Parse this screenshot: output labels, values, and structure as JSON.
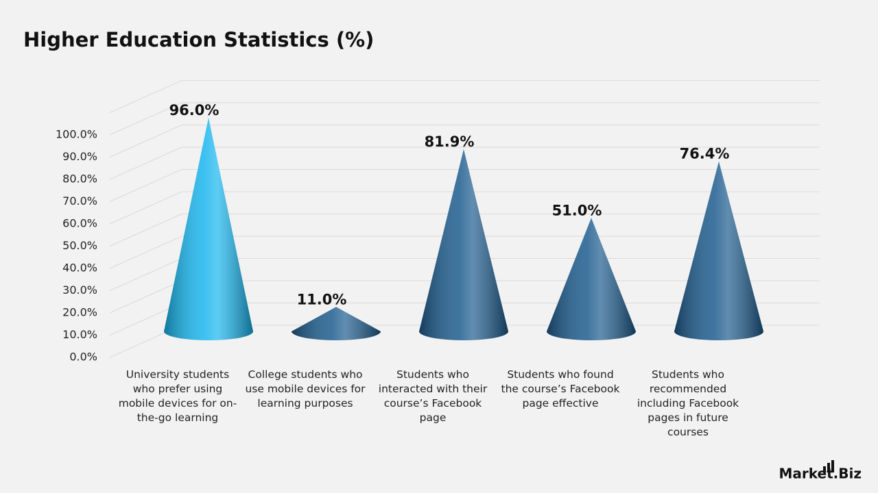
{
  "chart_data": {
    "type": "cone",
    "title": "Higher Education Statistics (%)",
    "categories": [
      "University students who prefer using mobile devices for on-the-go learning",
      "College students who use mobile devices for learning purposes",
      "Students who interacted with their course’s Facebook page",
      "Students who found the course’s Facebook page effective",
      "Students who recommended including Facebook pages in future courses"
    ],
    "values": [
      96.0,
      11.0,
      81.9,
      51.0,
      76.4
    ],
    "value_labels": [
      "96.0%",
      "11.0%",
      "81.9%",
      "51.0%",
      "76.4%"
    ],
    "colors": [
      "#1ab6ee",
      "#1d5c8e",
      "#1d5c8e",
      "#1d5c8e",
      "#1d5c8e"
    ],
    "ylim": [
      0,
      110
    ],
    "yticks": [
      {
        "value": 0,
        "label": "0.0%"
      },
      {
        "value": 10,
        "label": "10.0%"
      },
      {
        "value": 20,
        "label": "20.0%"
      },
      {
        "value": 30,
        "label": "30.0%"
      },
      {
        "value": 40,
        "label": "40.0%"
      },
      {
        "value": 50,
        "label": "50.0%"
      },
      {
        "value": 60,
        "label": "60.0%"
      },
      {
        "value": 70,
        "label": "70.0%"
      },
      {
        "value": 80,
        "label": "80.0%"
      },
      {
        "value": 90,
        "label": "90.0%"
      },
      {
        "value": 100,
        "label": "100.0%"
      }
    ],
    "grid": true
  },
  "brand": "Market.Biz"
}
